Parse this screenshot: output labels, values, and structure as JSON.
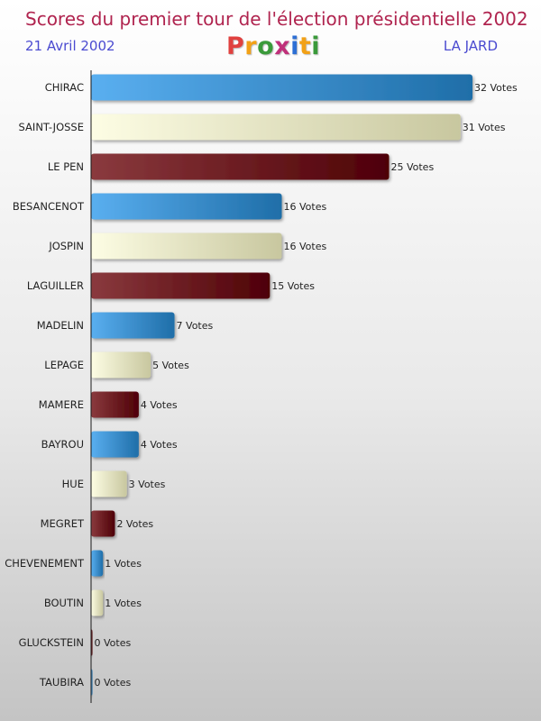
{
  "header": {
    "title": "Scores du premier tour de l'élection présidentielle 2002",
    "date": "21 Avril 2002",
    "place": "LA JARD",
    "logo_text": "Proxiti",
    "logo_colors": [
      "#e0413f",
      "#f2a117",
      "#3a9a3a",
      "#c0307a",
      "#2d6fd4",
      "#f2a117",
      "#3a9a3a"
    ]
  },
  "chart_data": {
    "type": "bar",
    "orientation": "horizontal",
    "value_suffix": " Votes",
    "categories": [
      "CHIRAC",
      "SAINT-JOSSE",
      "LE PEN",
      "BESANCENOT",
      "JOSPIN",
      "LAGUILLER",
      "MADELIN",
      "LEPAGE",
      "MAMERE",
      "BAYROU",
      "HUE",
      "MEGRET",
      "CHEVENEMENT",
      "BOUTIN",
      "GLUCKSTEIN",
      "TAUBIRA"
    ],
    "values": [
      32,
      31,
      25,
      16,
      16,
      15,
      7,
      5,
      4,
      4,
      3,
      2,
      1,
      1,
      0,
      0
    ],
    "value_labels": [
      "32 Votes",
      "31 Votes",
      "25 Votes",
      "16 Votes",
      "16 Votes",
      "15 Votes",
      "7 Votes",
      "5 Votes",
      "4 Votes",
      "4 Votes",
      "3 Votes",
      "2 Votes",
      "1 Votes",
      "1 Votes",
      "0 Votes",
      "0 Votes"
    ],
    "bar_colors": [
      "blue",
      "cream",
      "maroon",
      "blue",
      "cream",
      "maroon",
      "blue",
      "cream",
      "maroon",
      "blue",
      "cream",
      "maroon",
      "blue",
      "cream",
      "maroon",
      "blue"
    ],
    "palette": {
      "blue": [
        "#5aaff0",
        "#1f6ea8"
      ],
      "cream": [
        "#fdfde4",
        "#c8c79f"
      ],
      "maroon": [
        "#8a3a3e",
        "#4e0006"
      ]
    },
    "xlim": [
      0,
      32
    ],
    "grid": false
  }
}
